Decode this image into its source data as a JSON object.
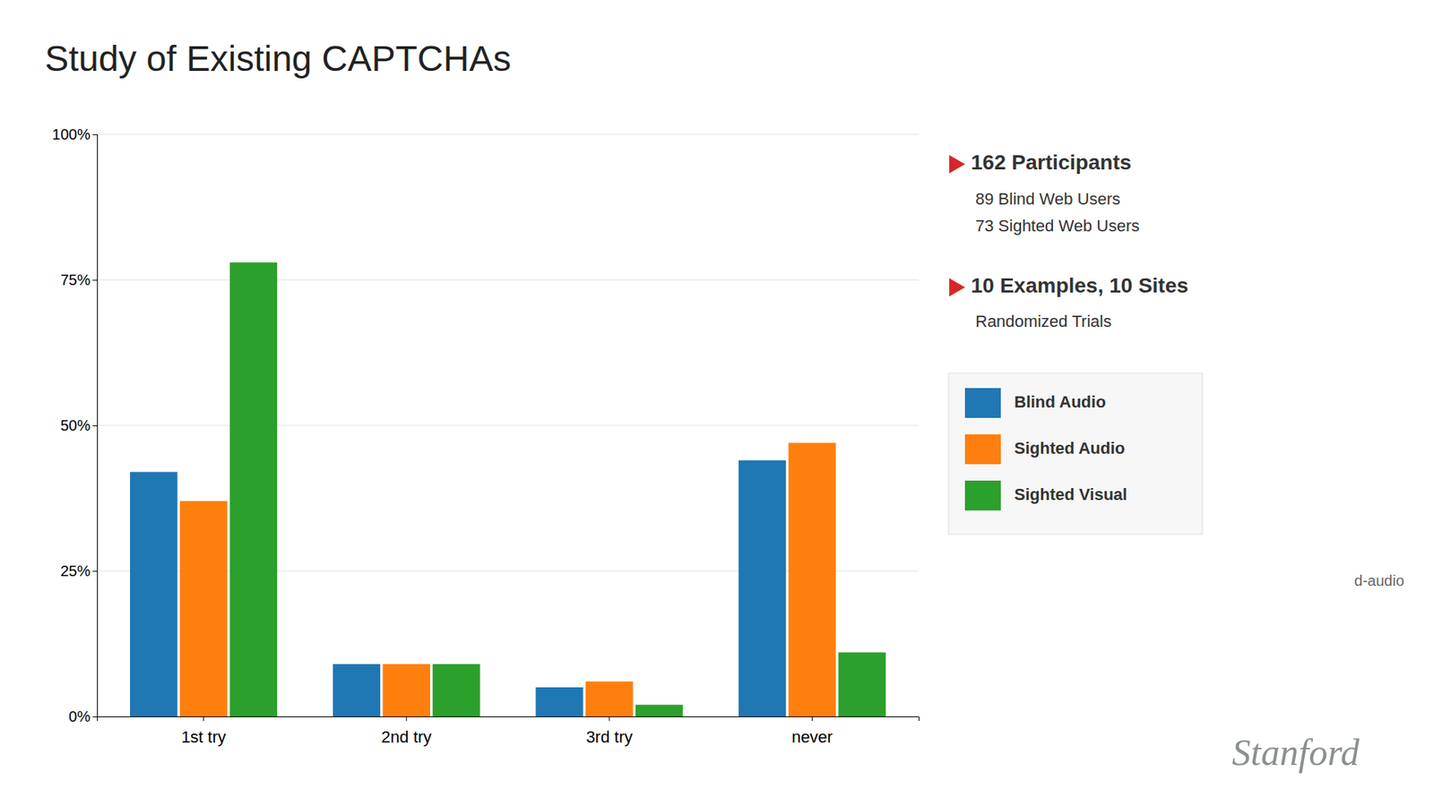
{
  "chart_data": {
    "type": "bar",
    "title": "Study of Existing CAPTCHAs",
    "categories": [
      "1st try",
      "2nd try",
      "3rd try",
      "never"
    ],
    "series": [
      {
        "name": "Blind Audio",
        "values": [
          42,
          9,
          5,
          44
        ]
      },
      {
        "name": "Sighted Audio",
        "values": [
          37,
          9,
          6,
          47
        ]
      },
      {
        "name": "Sighted Visual",
        "values": [
          78,
          9,
          2,
          11
        ]
      }
    ],
    "ylim": [
      0,
      100
    ],
    "yticks": [
      {
        "value": 0,
        "label": "0%"
      },
      {
        "value": 25,
        "label": "25%"
      },
      {
        "value": 50,
        "label": "50%"
      },
      {
        "value": 75,
        "label": "75%"
      },
      {
        "value": 100,
        "label": "100%"
      }
    ],
    "grid": true,
    "legend": "right",
    "annotations": [
      "162 Participants",
      "89 Blind Web Users",
      "73 Sighted Web Users",
      "10 Examples, 10 Sites",
      "Randomized Trials",
      "d-audio",
      "Stanford"
    ]
  }
}
